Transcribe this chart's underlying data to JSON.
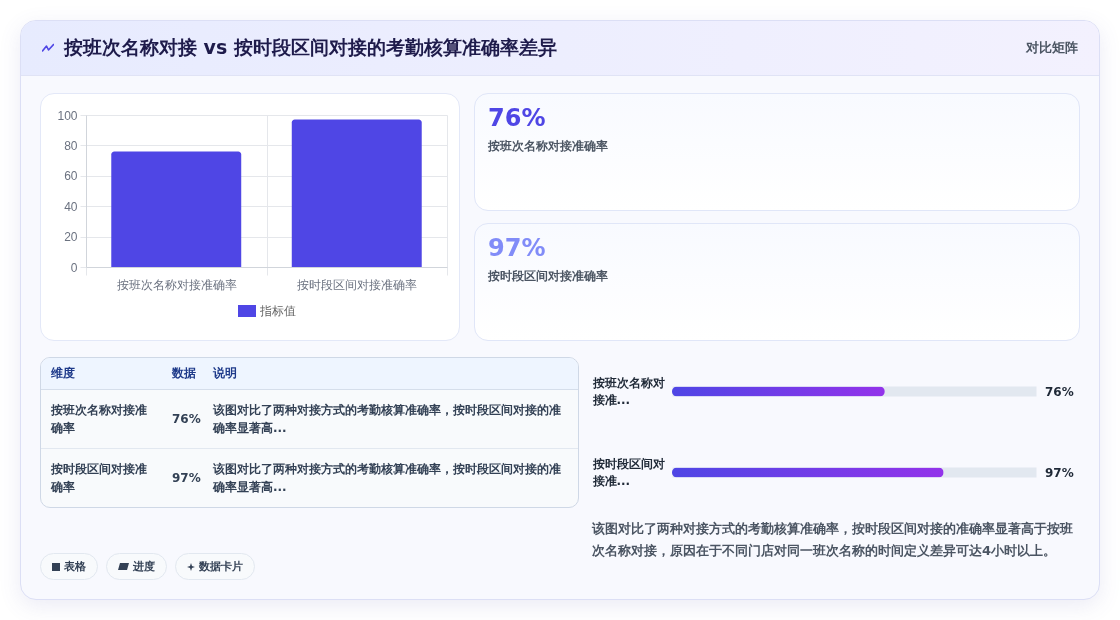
{
  "chart_data": [
    {
      "type": "other",
      "title": "按班次名称对接 vs 按时段区间对接的考勤核算准确率差异",
      "annotations": [
        "对比矩阵"
      ]
    },
    {
      "type": "bar",
      "categories": [
        "按班次名称对接准确率",
        "按时段区间对接准确率"
      ],
      "series": [
        {
          "name": "指标值",
          "color": "#4f46e5",
          "values": [
            76,
            97
          ]
        }
      ],
      "ylim": [
        0,
        100
      ],
      "yticks": [
        0,
        20,
        40,
        60,
        80,
        100
      ],
      "grid": true,
      "legend": "bottom"
    },
    {
      "type": "other",
      "categories": [
        "按班次名称对接准确率",
        "按时段区间对接准确率"
      ],
      "value_labels": [
        "76%",
        "97%"
      ]
    },
    {
      "type": "other",
      "categories": [
        "按班次名称对接准确率",
        "按时段区间对接准确率"
      ],
      "value_labels": [
        "76%",
        "97%"
      ],
      "annotations": [
        "维度",
        "数据",
        "说明",
        "该图对比了两种对接方式的考勤核算准确率，按时段区间对接的准确率显著高...",
        "该图对比了两种对接方式的考勤核算准确率，按时段区间对接的准确率显著高..."
      ]
    },
    {
      "type": "bar",
      "orientation": "horizontal",
      "categories": [
        "按班次名称对接准...",
        "按时段区间对接准..."
      ],
      "values": [
        76,
        97
      ],
      "color": "#4f46e5",
      "xlim": [
        0,
        130
      ],
      "value_labels": [
        "76%",
        "97%"
      ],
      "tick_labels": "y",
      "grid": "y",
      "annotations": [
        "该图对比了两种对接方式的考勤核算准确率，按时段区间对接的准确率显著高于按班次名称对接，原因在于不同门店对同一班次名称的时间定义差异可达4小时以上。"
      ]
    },
    {
      "type": "other",
      "annotations": [
        "表格",
        "进度",
        "数据卡片"
      ]
    }
  ]
}
